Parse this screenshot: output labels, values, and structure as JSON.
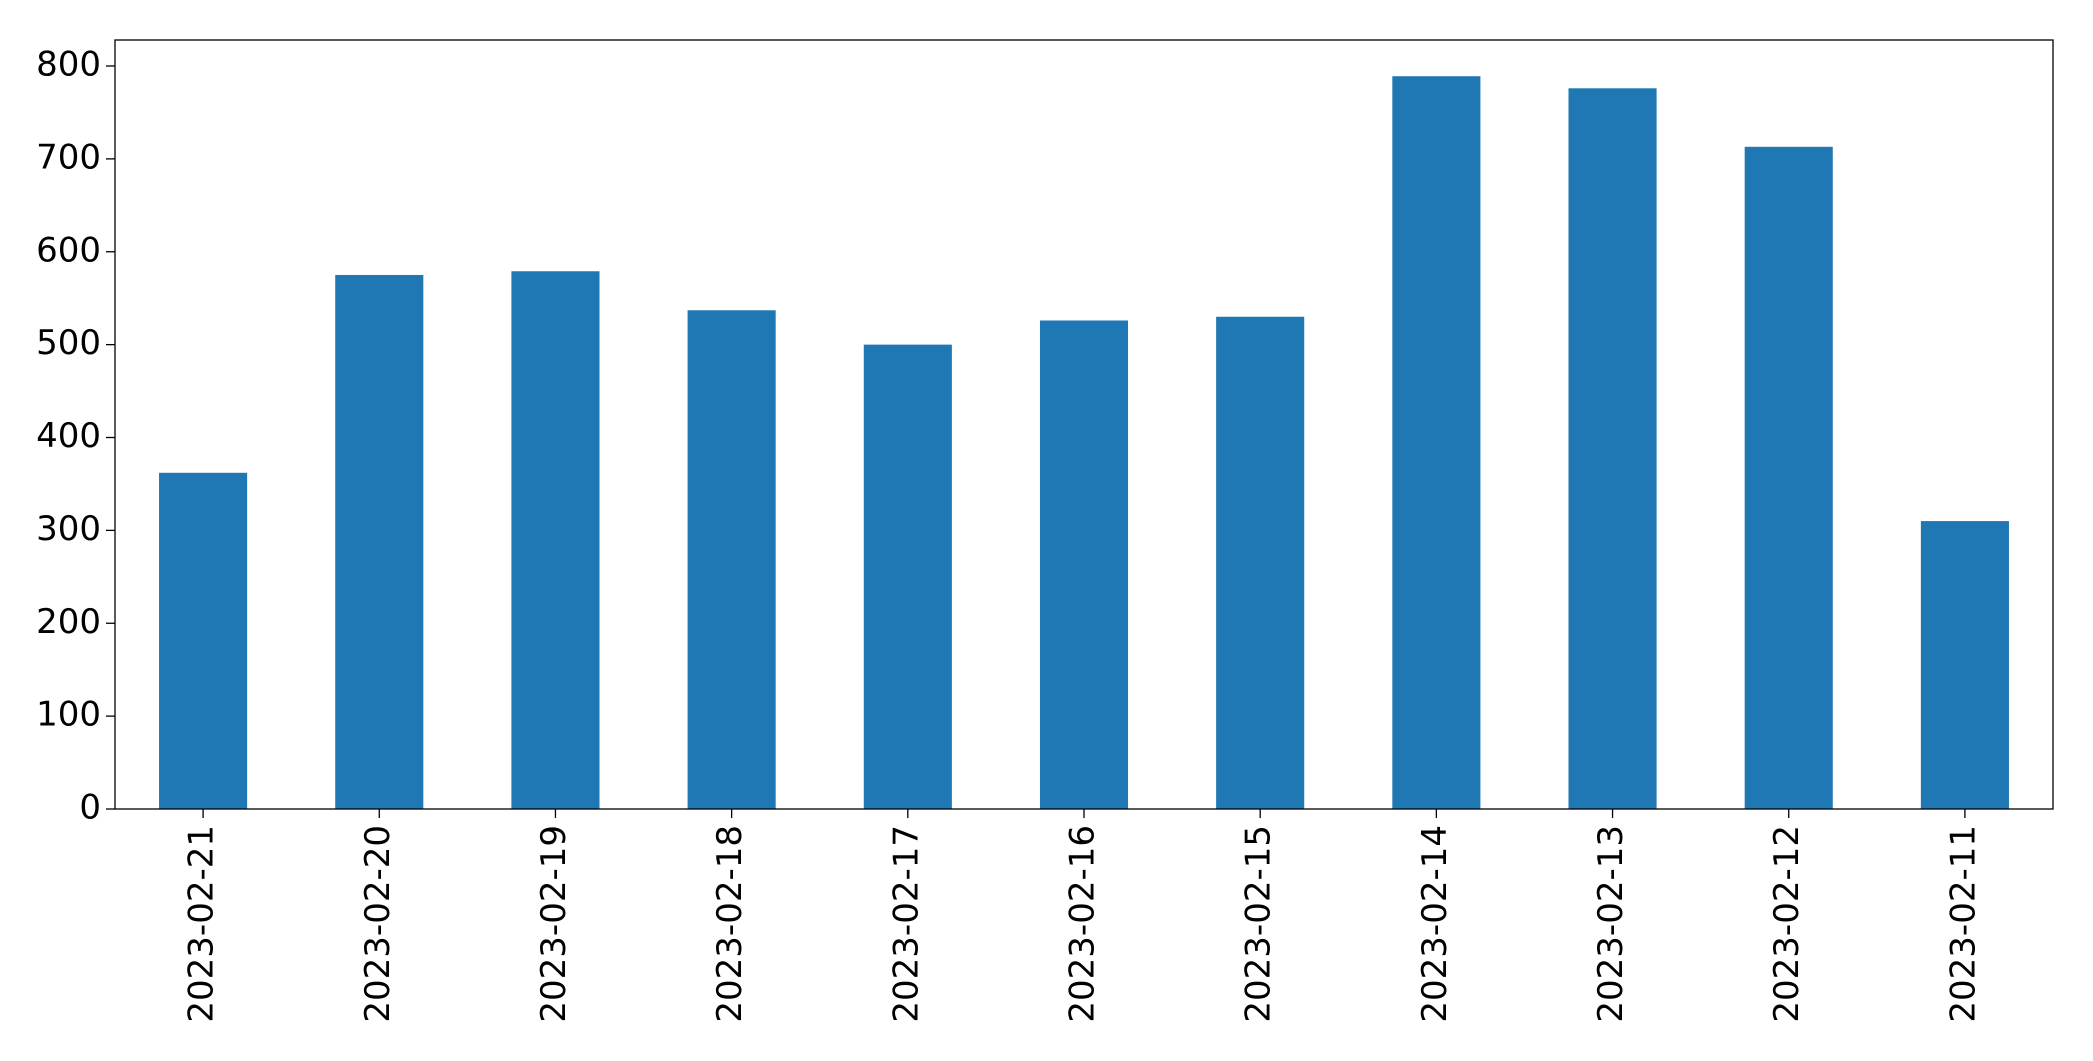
{
  "chart_data": {
    "type": "bar",
    "categories": [
      "2023-02-21",
      "2023-02-20",
      "2023-02-19",
      "2023-02-18",
      "2023-02-17",
      "2023-02-16",
      "2023-02-15",
      "2023-02-14",
      "2023-02-13",
      "2023-02-12",
      "2023-02-11"
    ],
    "values": [
      362,
      575,
      579,
      537,
      500,
      526,
      530,
      789,
      776,
      713,
      310
    ],
    "color": "#1f77b4",
    "ylim": [
      0,
      828
    ],
    "yticks": [
      0,
      100,
      200,
      300,
      400,
      500,
      600,
      700,
      800
    ],
    "grid": false
  }
}
